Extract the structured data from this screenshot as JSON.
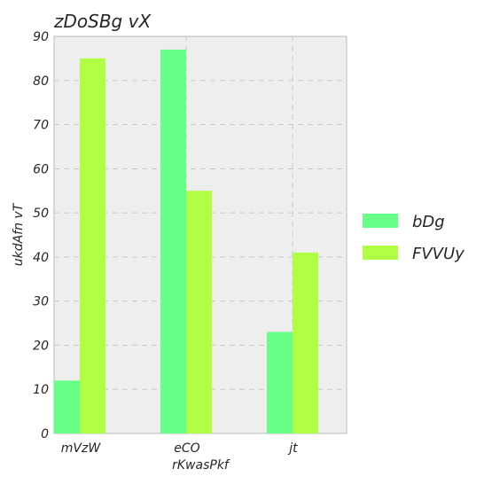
{
  "chart_data": {
    "type": "bar",
    "title": "zDoSBg  vX",
    "xlabel": "rKwasPkf",
    "ylabel": "ukdAfn vT",
    "categories": [
      "mVzW",
      "eCO",
      "jt"
    ],
    "series": [
      {
        "name": "bDg",
        "color": "#66ff88",
        "values": [
          12,
          87,
          23
        ]
      },
      {
        "name": "FVVUy",
        "color": "#b0ff44",
        "values": [
          85,
          55,
          41
        ]
      }
    ],
    "ylim": [
      0,
      90
    ],
    "yticks": [
      0,
      10,
      20,
      30,
      40,
      50,
      60,
      70,
      80,
      90
    ],
    "grid": true,
    "legend_position": "right"
  }
}
